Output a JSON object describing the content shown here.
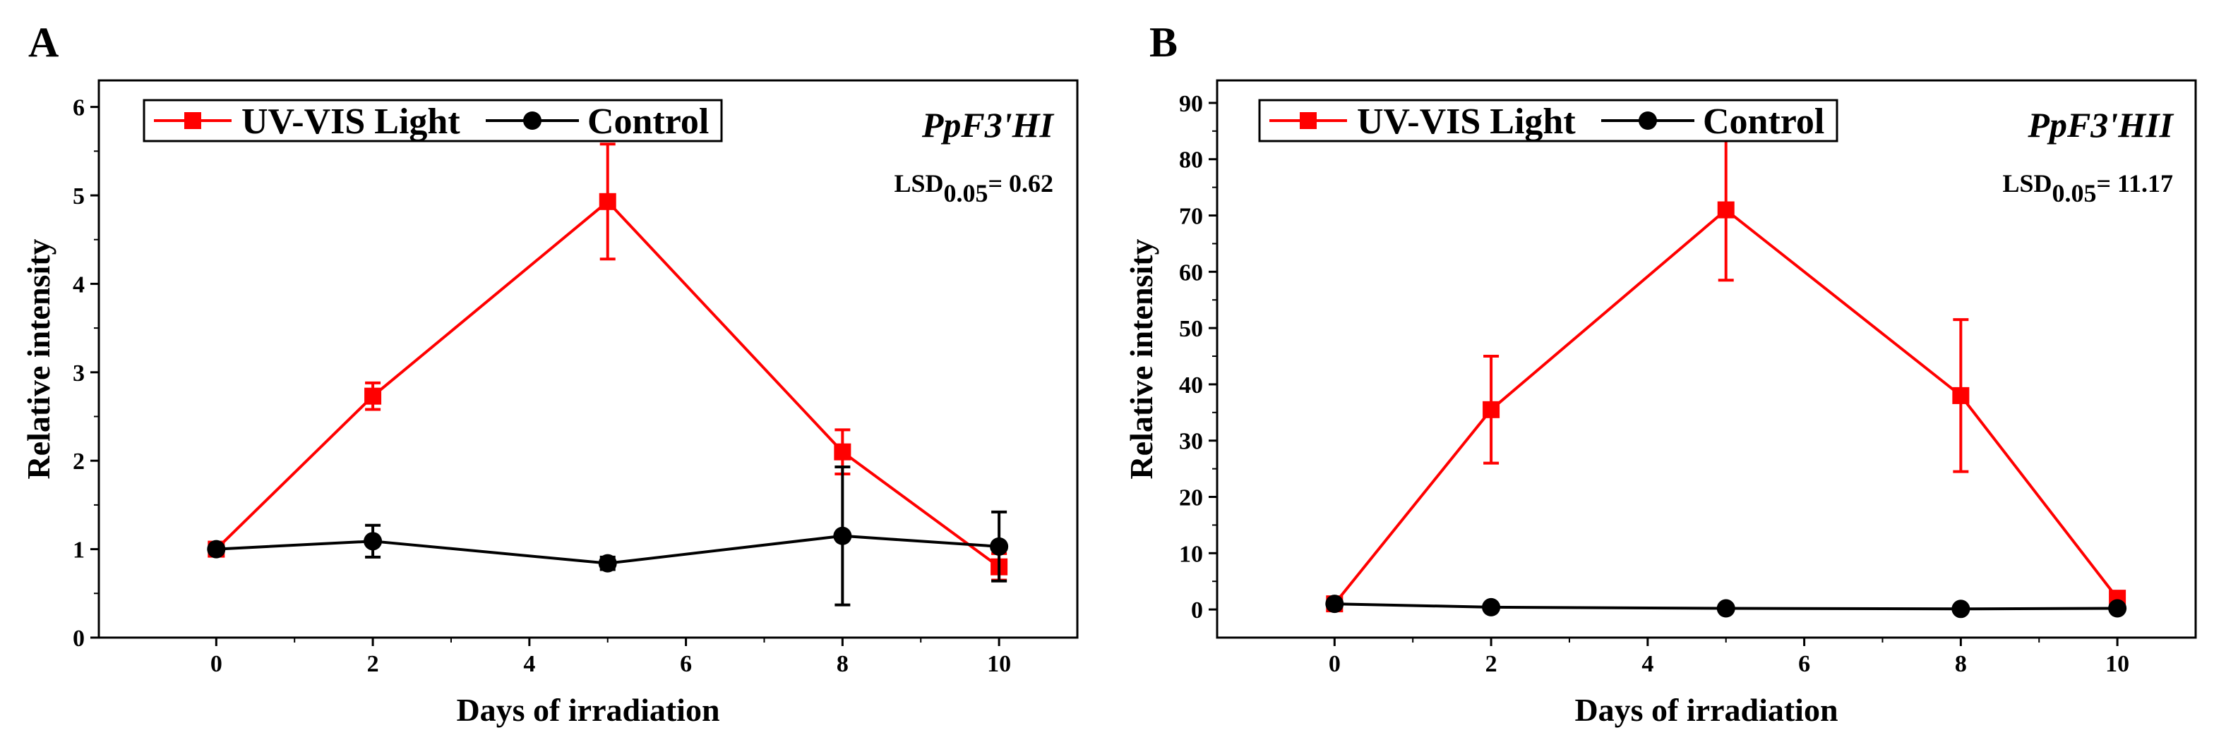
{
  "chart_data": [
    {
      "type": "line",
      "panel_label": "A",
      "gene_label": "PpF3'HI",
      "lsd": {
        "prefix": "LSD",
        "subscript": "0.05",
        "suffix": "= 0.62"
      },
      "xlabel": "Days of irradiation",
      "ylabel": "Relative intensity",
      "xlim": [
        -1.5,
        11
      ],
      "ylim": [
        0,
        6.3
      ],
      "xticks": [
        0,
        2,
        4,
        6,
        8,
        10
      ],
      "yticks": [
        0,
        1,
        2,
        3,
        4,
        5,
        6
      ],
      "legend": {
        "location": "top-left"
      },
      "series": [
        {
          "name": "UV-VIS Light",
          "color": "#ff0000",
          "marker": "square",
          "x": [
            0,
            2,
            5,
            8,
            10
          ],
          "y": [
            1.0,
            2.73,
            4.93,
            2.1,
            0.8
          ],
          "err": [
            0.04,
            0.15,
            0.65,
            0.25,
            0.15
          ]
        },
        {
          "name": "Control",
          "color": "#000000",
          "marker": "circle",
          "x": [
            0,
            2,
            5,
            8,
            10
          ],
          "y": [
            1.0,
            1.09,
            0.84,
            1.15,
            1.03
          ],
          "err": [
            0.03,
            0.18,
            0.07,
            0.78,
            0.39
          ]
        }
      ]
    },
    {
      "type": "line",
      "panel_label": "B",
      "gene_label": "PpF3'HII",
      "lsd": {
        "prefix": "LSD",
        "subscript": "0.05",
        "suffix": "= 11.17"
      },
      "xlabel": "Days of irradiation",
      "ylabel": "Relative intensity",
      "xlim": [
        -1.5,
        11
      ],
      "ylim": [
        -5,
        94
      ],
      "xticks": [
        0,
        2,
        4,
        6,
        8,
        10
      ],
      "yticks": [
        0,
        10,
        20,
        30,
        40,
        50,
        60,
        70,
        80,
        90
      ],
      "legend": {
        "location": "top-left"
      },
      "series": [
        {
          "name": "UV-VIS Light",
          "color": "#ff0000",
          "marker": "square",
          "x": [
            0,
            2,
            5,
            8,
            10
          ],
          "y": [
            1.0,
            35.5,
            71.0,
            38.0,
            2.0
          ],
          "err": [
            0.3,
            9.5,
            12.5,
            13.5,
            0.5
          ]
        },
        {
          "name": "Control",
          "color": "#000000",
          "marker": "circle",
          "x": [
            0,
            2,
            5,
            8,
            10
          ],
          "y": [
            1.0,
            0.4,
            0.2,
            0.1,
            0.2
          ],
          "err": [
            0.2,
            0.2,
            0.2,
            0.2,
            0.2
          ]
        }
      ]
    }
  ]
}
